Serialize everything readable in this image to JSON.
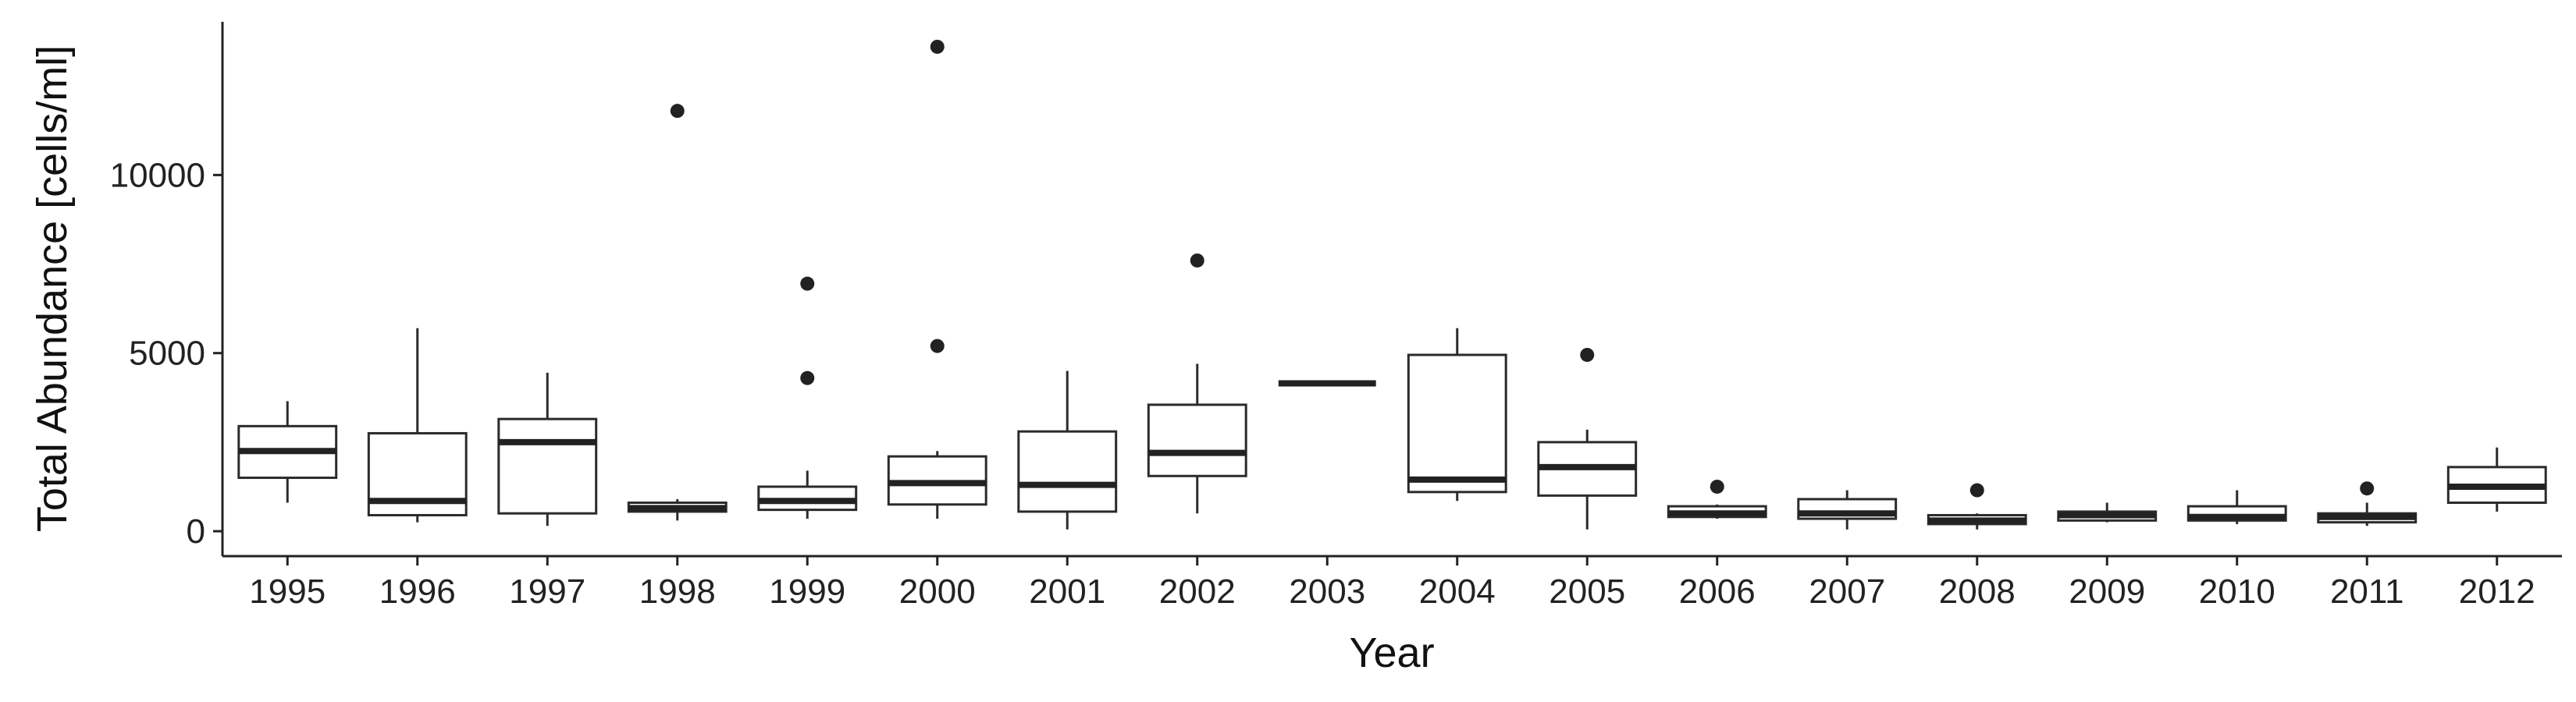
{
  "chart_data": {
    "type": "boxplot",
    "title": "",
    "xlabel": "Year",
    "ylabel": "Total Abundance [cells/ml]",
    "ylim": [
      -700,
      14300
    ],
    "yticks": [
      0,
      5000,
      10000
    ],
    "grid": false,
    "legend": "none",
    "colors": {
      "box_fill": "#ffffff",
      "stroke": "#2b2b2b",
      "median": "#222222",
      "outlier": "#222222"
    },
    "categories": [
      "1995",
      "1996",
      "1997",
      "1998",
      "1999",
      "2000",
      "2001",
      "2002",
      "2003",
      "2004",
      "2005",
      "2006",
      "2007",
      "2008",
      "2009",
      "2010",
      "2011",
      "2012"
    ],
    "boxes": [
      {
        "low": 800,
        "q1": 1500,
        "median": 2250,
        "q3": 2950,
        "high": 3650,
        "outliers": []
      },
      {
        "low": 250,
        "q1": 450,
        "median": 850,
        "q3": 2750,
        "high": 5700,
        "outliers": []
      },
      {
        "low": 150,
        "q1": 500,
        "median": 2500,
        "q3": 3150,
        "high": 4450,
        "outliers": []
      },
      {
        "low": 300,
        "q1": 550,
        "median": 650,
        "q3": 800,
        "high": 900,
        "outliers": [
          11800
        ]
      },
      {
        "low": 350,
        "q1": 600,
        "median": 850,
        "q3": 1250,
        "high": 1700,
        "outliers": [
          4300,
          6950
        ]
      },
      {
        "low": 350,
        "q1": 750,
        "median": 1350,
        "q3": 2100,
        "high": 2250,
        "outliers": [
          5200,
          13600
        ]
      },
      {
        "low": 50,
        "q1": 550,
        "median": 1300,
        "q3": 2800,
        "high": 4500,
        "outliers": []
      },
      {
        "low": 500,
        "q1": 1550,
        "median": 2200,
        "q3": 3550,
        "high": 4700,
        "outliers": [
          7600
        ]
      },
      {
        "low": 4150,
        "q1": 4150,
        "median": 4150,
        "q3": 4150,
        "high": 4150,
        "outliers": []
      },
      {
        "low": 850,
        "q1": 1100,
        "median": 1450,
        "q3": 4950,
        "high": 5700,
        "outliers": []
      },
      {
        "low": 50,
        "q1": 1000,
        "median": 1800,
        "q3": 2500,
        "high": 2850,
        "outliers": [
          4950
        ]
      },
      {
        "low": 350,
        "q1": 400,
        "median": 500,
        "q3": 700,
        "high": 750,
        "outliers": [
          1250
        ]
      },
      {
        "low": 50,
        "q1": 350,
        "median": 500,
        "q3": 900,
        "high": 1150,
        "outliers": []
      },
      {
        "low": 50,
        "q1": 200,
        "median": 300,
        "q3": 450,
        "high": 500,
        "outliers": [
          1150
        ]
      },
      {
        "low": 250,
        "q1": 300,
        "median": 450,
        "q3": 550,
        "high": 800,
        "outliers": []
      },
      {
        "low": 200,
        "q1": 300,
        "median": 400,
        "q3": 700,
        "high": 1150,
        "outliers": []
      },
      {
        "low": 150,
        "q1": 250,
        "median": 400,
        "q3": 500,
        "high": 800,
        "outliers": [
          1200
        ]
      },
      {
        "low": 550,
        "q1": 800,
        "median": 1250,
        "q3": 1800,
        "high": 2350,
        "outliers": []
      }
    ]
  }
}
